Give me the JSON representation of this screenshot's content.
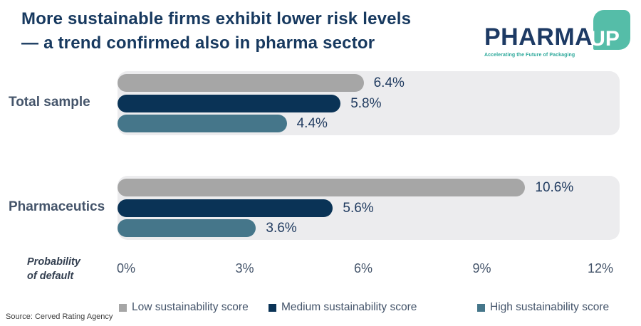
{
  "title": {
    "line1": "More sustainable firms exhibit lower risk levels",
    "line2": "— a trend confirmed also in pharma sector"
  },
  "logo": {
    "wordmark": "PHARMA",
    "badge": "UP",
    "tagline": "Accelerating the Future of Packaging",
    "badge_color": "#55bda8",
    "wordmark_color": "#1d3a64"
  },
  "chart_data": {
    "type": "bar",
    "orientation": "horizontal",
    "title": "More sustainable firms exhibit lower risk levels — a trend confirmed also in pharma sector",
    "xlabel": "Probability of default",
    "categories": [
      "Total sample",
      "Pharmaceutics"
    ],
    "series": [
      {
        "name": "Low sustainability score",
        "color": "#a6a6a6",
        "values": [
          6.4,
          10.6
        ],
        "labels": [
          "6.4%",
          "10.6%"
        ]
      },
      {
        "name": "Medium sustainability score",
        "color": "#0a3356",
        "values": [
          5.8,
          5.6
        ],
        "labels": [
          "5.8%",
          "5.6%"
        ]
      },
      {
        "name": "High sustainability score",
        "color": "#45768a",
        "values": [
          4.4,
          3.6
        ],
        "labels": [
          "4.4%",
          "3.6%"
        ]
      }
    ],
    "x_ticks": [
      "0%",
      "3%",
      "6%",
      "9%",
      "12%"
    ],
    "xlim": [
      0,
      12
    ],
    "grid": false,
    "legend_position": "bottom",
    "track_color": "#ececee"
  },
  "axis_label": {
    "line1": "Probability",
    "line2": "of default"
  },
  "source": "Source: Cerved Rating Agency"
}
